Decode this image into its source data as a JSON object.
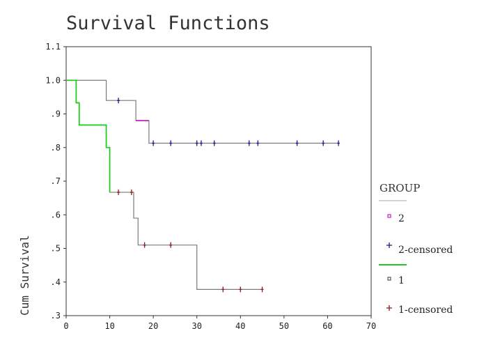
{
  "chart_data": {
    "type": "line",
    "title": "Survival Functions",
    "ylabel": "Cum Survival",
    "xlabel": "",
    "xlim": [
      0,
      70
    ],
    "ylim": [
      0.3,
      1.1
    ],
    "x_ticks": [
      0,
      10,
      20,
      30,
      40,
      50,
      60,
      70
    ],
    "x_tick_labels": [
      "0",
      "10",
      "20",
      "30",
      "40",
      "50",
      "60",
      "70"
    ],
    "y_ticks": [
      0.3,
      0.4,
      0.5,
      0.6,
      0.7,
      0.8,
      0.9,
      1.0,
      1.1
    ],
    "y_tick_labels": [
      ".3",
      ".4",
      ".5",
      ".6",
      ".7",
      ".8",
      ".9",
      "1.0",
      "1.1"
    ],
    "grid": false,
    "legend_title": "GROUP",
    "legend_position": "right",
    "legend": [
      "2",
      "2-censored",
      "1",
      "1-censored"
    ],
    "series": [
      {
        "name": "2",
        "color": "#7a7a7a",
        "highlight_color": "#c020c0",
        "steps": [
          [
            0,
            1.0
          ],
          [
            9.2,
            0.94
          ],
          [
            16,
            0.88
          ],
          [
            19,
            0.813
          ],
          [
            62.5,
            0.813
          ]
        ],
        "highlight_segment": [
          16,
          19
        ],
        "censored": [
          12,
          20,
          24,
          30,
          31,
          34,
          42,
          44,
          53,
          59,
          62.5
        ],
        "censored_color": "#1a1a8a"
      },
      {
        "name": "1",
        "color": "#7a7a7a",
        "highlight_color": "#22cc22",
        "steps": [
          [
            0,
            1.0
          ],
          [
            2.3,
            0.933
          ],
          [
            3,
            0.867
          ],
          [
            9.2,
            0.8
          ],
          [
            10,
            0.667
          ],
          [
            15.5,
            0.59
          ],
          [
            16.5,
            0.51
          ],
          [
            30,
            0.378
          ],
          [
            45,
            0.378
          ]
        ],
        "highlight_until": 10,
        "censored": [
          12,
          15,
          18,
          24,
          36,
          40,
          45
        ],
        "censored_color": "#8b1a1a"
      }
    ]
  }
}
